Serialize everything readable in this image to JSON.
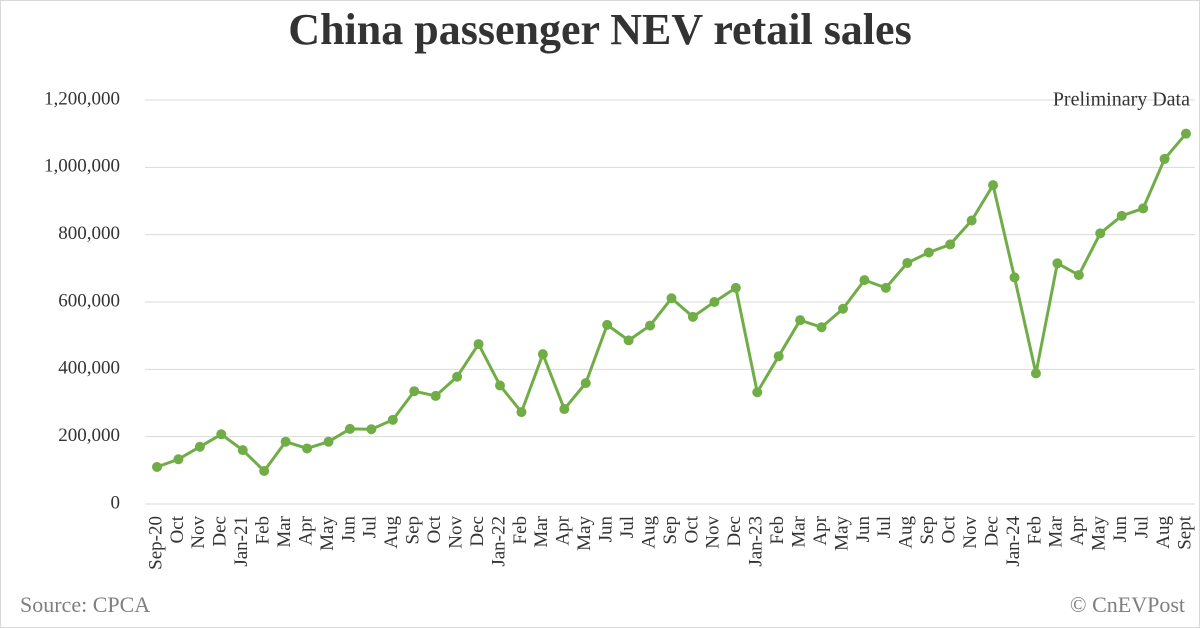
{
  "chart_data": {
    "type": "line",
    "title": "China passenger NEV retail sales",
    "source": "Source: CPCA",
    "credit": "© CnEVPost",
    "annotation": "Preliminary Data",
    "categories": [
      "Sep-20",
      "Oct",
      "Nov",
      "Dec",
      "Jan-21",
      "Feb",
      "Mar",
      "Apr",
      "May",
      "Jun",
      "Jul",
      "Aug",
      "Sep",
      "Oct",
      "Nov",
      "Dec",
      "Jan-22",
      "Feb",
      "Mar",
      "Apr",
      "May",
      "Jun",
      "Jul",
      "Aug",
      "Sep",
      "Oct",
      "Nov",
      "Dec",
      "Jan-23",
      "Feb",
      "Mar",
      "Apr",
      "May",
      "Jun",
      "Jul",
      "Aug",
      "Sep",
      "Oct",
      "Nov",
      "Dec",
      "Jan-24",
      "Feb",
      "Mar",
      "Apr",
      "May",
      "Jun",
      "Jul",
      "Aug",
      "Sept"
    ],
    "values": [
      110000,
      133000,
      170000,
      207000,
      160000,
      98000,
      185000,
      165000,
      185000,
      223000,
      222000,
      250000,
      335000,
      321000,
      378000,
      475000,
      352000,
      273000,
      445000,
      282000,
      359000,
      532000,
      486000,
      530000,
      611000,
      556000,
      600000,
      642000,
      332000,
      439000,
      546000,
      525000,
      580000,
      665000,
      642000,
      716000,
      747000,
      771000,
      842000,
      947000,
      673000,
      388000,
      715000,
      680000,
      804000,
      856000,
      878000,
      1025000,
      1100000
    ],
    "color": "#70ad47",
    "ylim": [
      0,
      1200000
    ],
    "yticks": [
      0,
      {
        "value": 200000,
        "label": "200,000"
      },
      {
        "value": 400000,
        "label": "400,000"
      },
      {
        "value": 600000,
        "label": "600,000"
      },
      {
        "value": 800000,
        "label": "800,000"
      },
      {
        "value": 1000000,
        "label": "1,000,000"
      },
      {
        "value": 1200000,
        "label": "1,200,000"
      }
    ],
    "grid": true
  }
}
